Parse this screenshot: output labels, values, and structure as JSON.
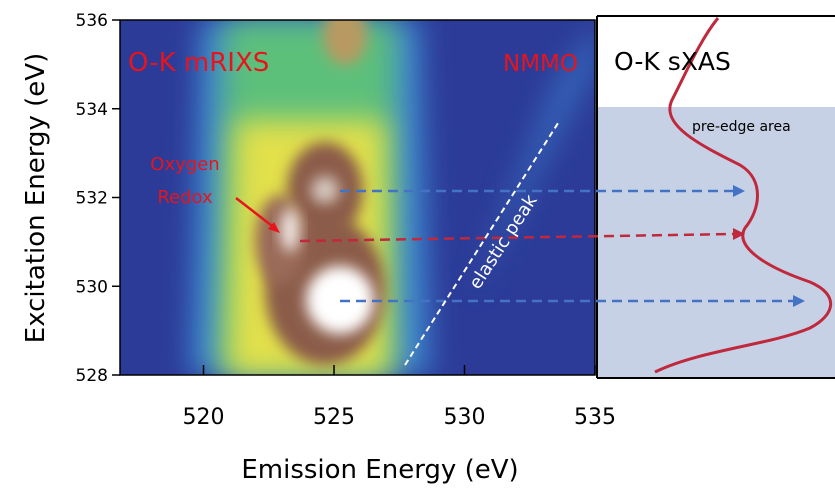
{
  "chart_data": {
    "type": "heatmap",
    "title": "O-K mRIXS",
    "sample_label": "NMMO",
    "x_label": "Emission Energy (eV)",
    "y_label": "Excitation Energy (eV)",
    "xlim": [
      516.8,
      535
    ],
    "xticks": [
      520,
      525,
      530,
      535
    ],
    "ylim": [
      528,
      536
    ],
    "yticks": [
      528,
      530,
      532,
      534,
      536
    ],
    "annotations": [
      "Oxygen",
      "Redox",
      "elastic peak"
    ],
    "side_panel_title": "O-K sXAS",
    "side_panel_annotation": "pre-edge area"
  }
}
